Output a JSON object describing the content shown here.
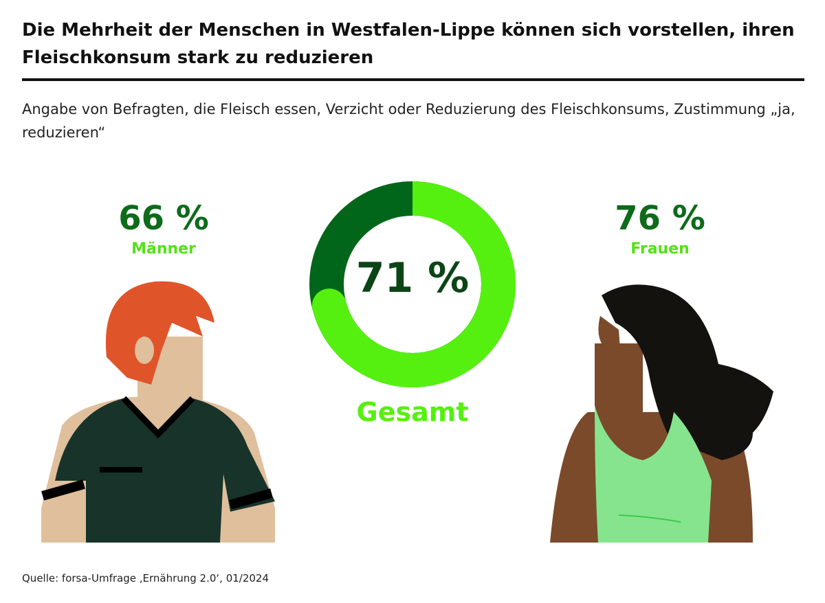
{
  "title": "Die Mehrheit der Menschen in Westfalen-Lippe können sich vorstellen, ihren Fleischkonsum stark zu reduzieren",
  "subtitle": "Angabe von Befragten, die Fleisch essen, Verzicht oder Reduzierung des Fleischkonsums, Zustimmung „ja, reduzieren“",
  "source": "Quelle: forsa-Umfrage ‚Ernährung 2.0‘, 01/2024",
  "colors": {
    "accent": "#55f00f",
    "dark": "#02661a",
    "text_dark": "#0b4516"
  },
  "chart_data": {
    "type": "pie",
    "title": "Die Mehrheit der Menschen in Westfalen-Lippe können sich vorstellen, ihren Fleischkonsum stark zu reduzieren",
    "categories": [
      "Männer",
      "Gesamt",
      "Frauen"
    ],
    "values": [
      66,
      71,
      76
    ],
    "unit": "%",
    "labels": {
      "men_value": "66 %",
      "men_label": "Männer",
      "total_value": "71 %",
      "total_label": "Gesamt",
      "women_value": "76 %",
      "women_label": "Frauen"
    },
    "donut": {
      "value": 71,
      "remainder": 29
    }
  }
}
